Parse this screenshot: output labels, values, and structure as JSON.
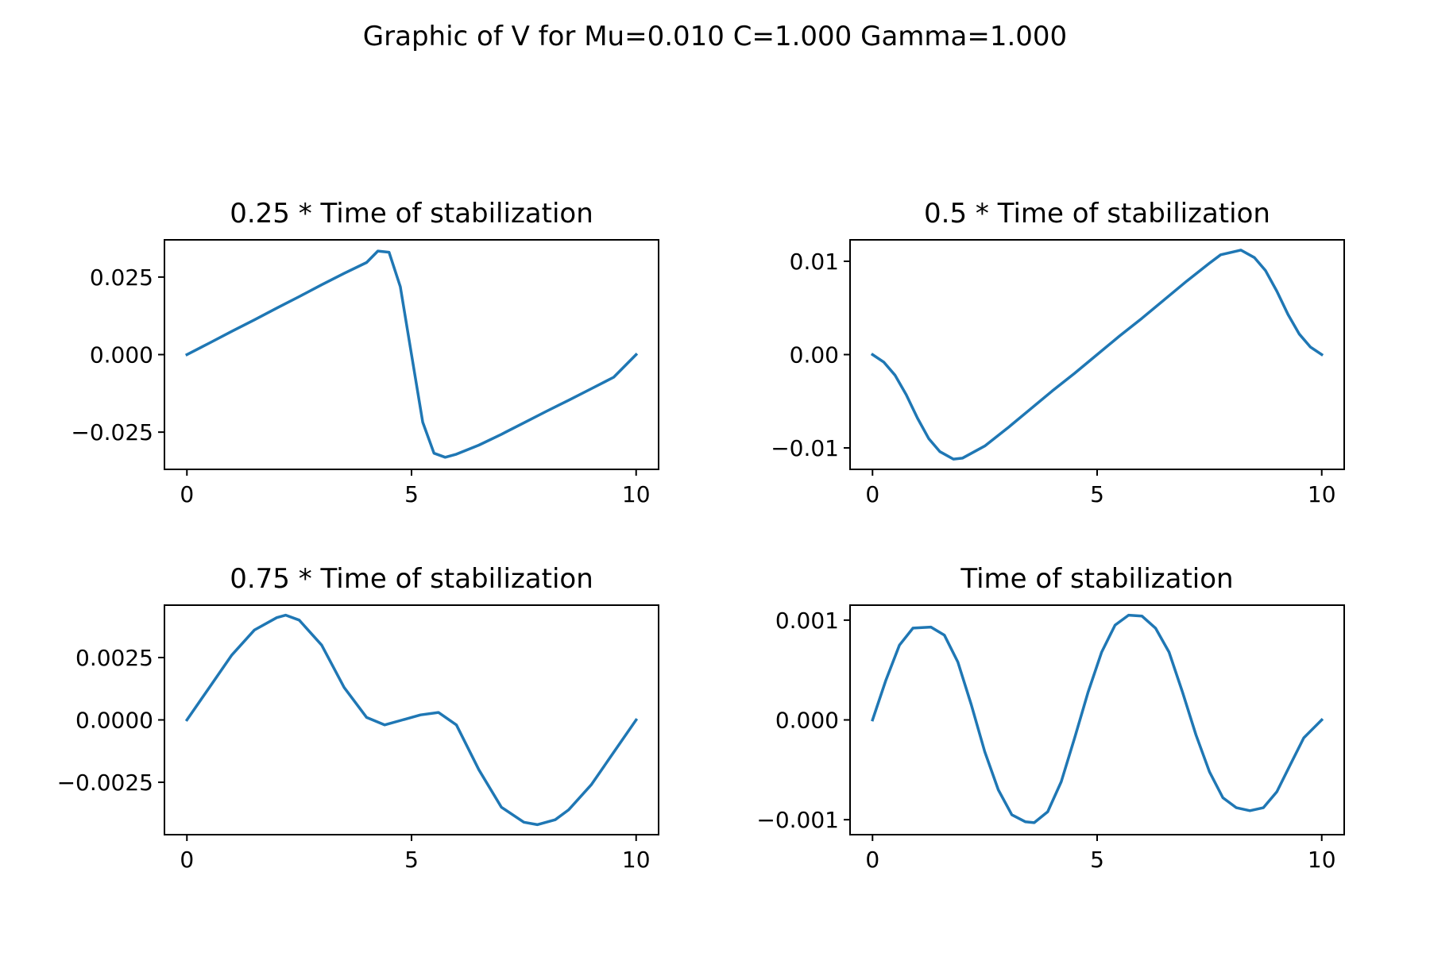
{
  "figure": {
    "title": "Graphic of V for Mu=0.010 C=1.000 Gamma=1.000"
  },
  "chart_data": [
    {
      "type": "line",
      "title": "0.25 *  Time of stabilization",
      "xlim": [
        -0.5,
        10.5
      ],
      "ylim": [
        -0.037,
        0.037
      ],
      "xticks": [
        0,
        5,
        10
      ],
      "xtick_labels": [
        "0",
        "5",
        "10"
      ],
      "yticks": [
        -0.025,
        0,
        0.025
      ],
      "ytick_labels": [
        "−0.025",
        "0.000",
        "0.025"
      ],
      "series": [
        {
          "color": "#1f77b4",
          "x": [
            0,
            0.5,
            1,
            1.5,
            2,
            2.5,
            3,
            3.5,
            4,
            4.25,
            4.5,
            4.75,
            5,
            5.25,
            5.5,
            5.75,
            6,
            6.5,
            7,
            7.5,
            8,
            8.5,
            9,
            9.5,
            10
          ],
          "y": [
            0,
            0.0037,
            0.0075,
            0.0112,
            0.015,
            0.0187,
            0.0225,
            0.0262,
            0.0297,
            0.0334,
            0.033,
            0.0219,
            0,
            -0.0218,
            -0.0318,
            -0.0331,
            -0.0321,
            -0.0292,
            -0.0257,
            -0.022,
            -0.0183,
            -0.0147,
            -0.011,
            -0.0073,
            0
          ]
        }
      ]
    },
    {
      "type": "line",
      "title": "0.5 *  Time of stabilization",
      "xlim": [
        -0.5,
        10.5
      ],
      "ylim": [
        -0.0123,
        0.0123
      ],
      "xticks": [
        0,
        5,
        10
      ],
      "xtick_labels": [
        "0",
        "5",
        "10"
      ],
      "yticks": [
        -0.01,
        0,
        0.01
      ],
      "ytick_labels": [
        "−0.01",
        "0.00",
        "0.01"
      ],
      "series": [
        {
          "color": "#1f77b4",
          "x": [
            0,
            0.25,
            0.5,
            0.75,
            1,
            1.25,
            1.5,
            1.8,
            2,
            2.5,
            3,
            3.5,
            4,
            4.5,
            5,
            5.5,
            6,
            6.5,
            7,
            7.5,
            7.75,
            8.2,
            8.5,
            8.75,
            9,
            9.25,
            9.5,
            9.75,
            10
          ],
          "y": [
            0,
            -0.0008,
            -0.0022,
            -0.0043,
            -0.0068,
            -0.009,
            -0.0104,
            -0.0112,
            -0.0111,
            -0.0098,
            -0.0079,
            -0.0059,
            -0.0039,
            -0.002,
            0,
            0.002,
            0.0039,
            0.0059,
            0.0079,
            0.0098,
            0.0107,
            0.0112,
            0.0104,
            0.009,
            0.0068,
            0.0043,
            0.0022,
            0.0008,
            0
          ]
        }
      ]
    },
    {
      "type": "line",
      "title": "0.75 *  Time of stabilization",
      "xlim": [
        -0.5,
        10.5
      ],
      "ylim": [
        -0.0046,
        0.0046
      ],
      "xticks": [
        0,
        5,
        10
      ],
      "xtick_labels": [
        "0",
        "5",
        "10"
      ],
      "yticks": [
        -0.0025,
        0,
        0.0025
      ],
      "ytick_labels": [
        "−0.0025",
        "0.0000",
        "0.0025"
      ],
      "series": [
        {
          "color": "#1f77b4",
          "x": [
            0,
            0.5,
            1,
            1.5,
            2,
            2.2,
            2.5,
            3,
            3.5,
            4,
            4.4,
            4.8,
            5.2,
            5.6,
            6,
            6.5,
            7,
            7.5,
            7.8,
            8.2,
            8.5,
            9,
            9.5,
            10
          ],
          "y": [
            0,
            0.0013,
            0.0026,
            0.0036,
            0.0041,
            0.0042,
            0.004,
            0.003,
            0.0013,
            0.0001,
            -0.0002,
            0,
            0.0002,
            0.0003,
            -0.0002,
            -0.002,
            -0.0035,
            -0.0041,
            -0.0042,
            -0.004,
            -0.0036,
            -0.0026,
            -0.0013,
            0
          ]
        }
      ]
    },
    {
      "type": "line",
      "title": "Time of stabilization",
      "xlim": [
        -0.5,
        10.5
      ],
      "ylim": [
        -0.00115,
        0.00115
      ],
      "xticks": [
        0,
        5,
        10
      ],
      "xtick_labels": [
        "0",
        "5",
        "10"
      ],
      "yticks": [
        -0.001,
        0,
        0.001
      ],
      "ytick_labels": [
        "−0.001",
        "0.000",
        "0.001"
      ],
      "series": [
        {
          "color": "#1f77b4",
          "x": [
            0,
            0.3,
            0.6,
            0.9,
            1.3,
            1.6,
            1.9,
            2.2,
            2.5,
            2.8,
            3.1,
            3.4,
            3.6,
            3.9,
            4.2,
            4.5,
            4.8,
            5.1,
            5.4,
            5.7,
            6,
            6.3,
            6.6,
            6.9,
            7.2,
            7.5,
            7.8,
            8.1,
            8.4,
            8.7,
            9,
            9.3,
            9.6,
            10
          ],
          "y": [
            0,
            0.0004,
            0.00075,
            0.00092,
            0.00093,
            0.00085,
            0.00058,
            0.00015,
            -0.00032,
            -0.0007,
            -0.00095,
            -0.00102,
            -0.00103,
            -0.00092,
            -0.00062,
            -0.00018,
            0.00028,
            0.00068,
            0.00095,
            0.00105,
            0.00104,
            0.00092,
            0.00068,
            0.00028,
            -0.00015,
            -0.00052,
            -0.00078,
            -0.00088,
            -0.00091,
            -0.00088,
            -0.00072,
            -0.00045,
            -0.00018,
            0
          ]
        }
      ]
    }
  ]
}
